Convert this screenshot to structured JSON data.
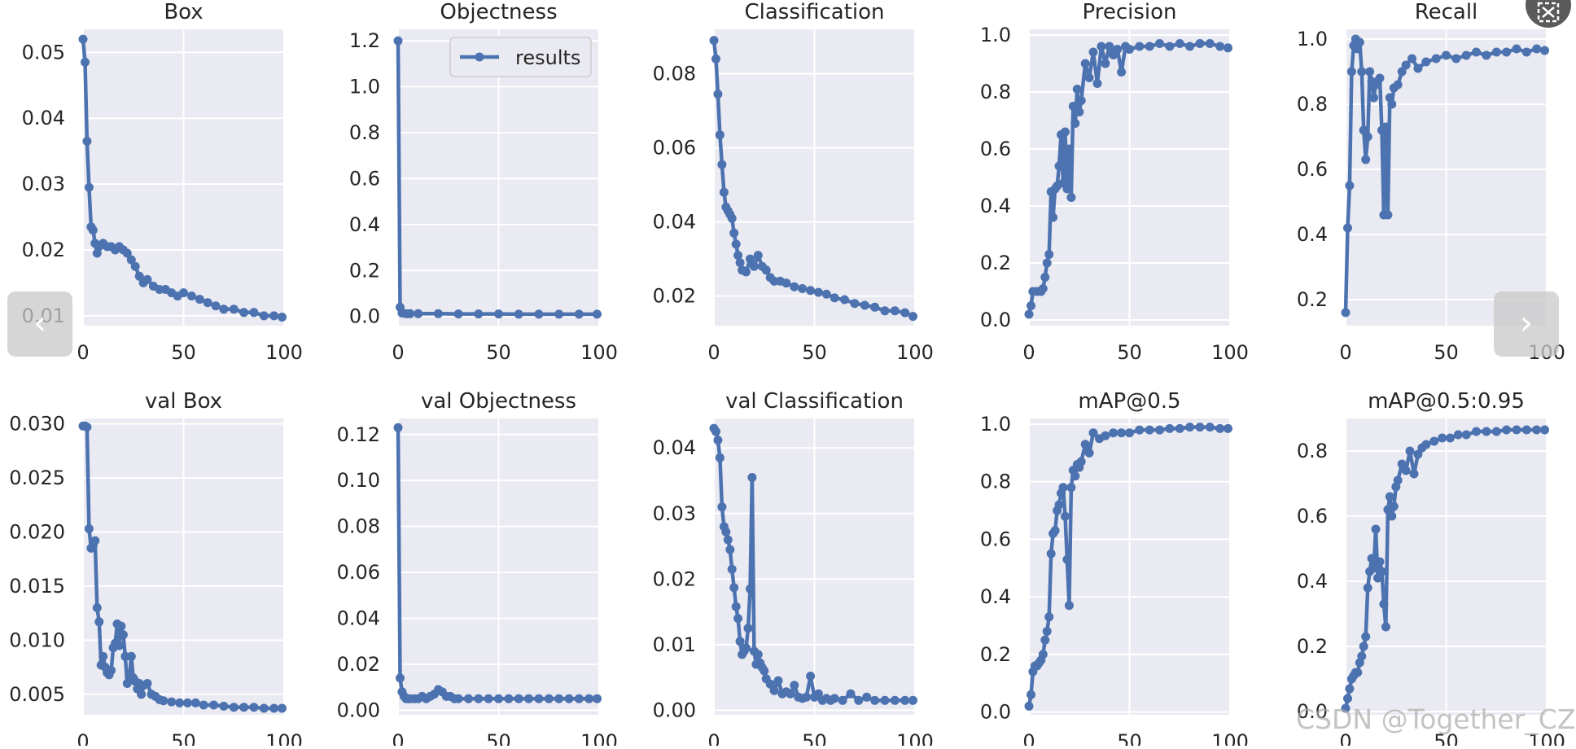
{
  "colors": {
    "line": "#4c72b0",
    "panel_bg": "#eaeaf2",
    "grid": "#ffffff",
    "text": "#262626"
  },
  "legend_label": "results",
  "watermark": "CSDN @Together_CZ",
  "nav": {
    "prev_icon": "chevron-left-icon",
    "next_icon": "chevron-right-icon",
    "close_icon": "close-icon"
  },
  "chart_data": [
    {
      "id": "box",
      "type": "line",
      "title": "Box",
      "xlim": [
        0,
        100
      ],
      "ylim": [
        0.0085,
        0.0535
      ],
      "xticks": [
        0,
        50,
        100
      ],
      "xtick_labels": [
        "0",
        "50",
        "100"
      ],
      "yticks": [
        0.01,
        0.02,
        0.03,
        0.04,
        0.05
      ],
      "ytick_labels": [
        "0.01",
        "0.02",
        "0.03",
        "0.04",
        "0.05"
      ],
      "x": [
        0,
        1,
        2,
        3,
        4,
        5,
        6,
        7,
        8,
        10,
        12,
        14,
        16,
        18,
        20,
        22,
        24,
        26,
        28,
        30,
        32,
        35,
        38,
        41,
        44,
        47,
        50,
        54,
        58,
        62,
        66,
        70,
        75,
        80,
        85,
        90,
        95,
        99
      ],
      "values": [
        0.052,
        0.0485,
        0.0365,
        0.0295,
        0.0235,
        0.023,
        0.021,
        0.0195,
        0.0205,
        0.021,
        0.0205,
        0.0205,
        0.02,
        0.0205,
        0.02,
        0.0195,
        0.0185,
        0.0175,
        0.016,
        0.015,
        0.0155,
        0.0145,
        0.014,
        0.014,
        0.0135,
        0.013,
        0.0135,
        0.013,
        0.0125,
        0.012,
        0.0115,
        0.011,
        0.011,
        0.0105,
        0.0105,
        0.01,
        0.01,
        0.0098
      ]
    },
    {
      "id": "objectness",
      "type": "line",
      "title": "Objectness",
      "xlim": [
        0,
        100
      ],
      "ylim": [
        -0.04,
        1.25
      ],
      "legend": true,
      "xticks": [
        0,
        50,
        100
      ],
      "xtick_labels": [
        "0",
        "50",
        "100"
      ],
      "yticks": [
        0,
        0.2,
        0.4,
        0.6,
        0.8,
        1.0,
        1.2
      ],
      "ytick_labels": [
        "0.0",
        "0.2",
        "0.4",
        "0.6",
        "0.8",
        "1.0",
        "1.2"
      ],
      "x": [
        0,
        1,
        2,
        4,
        6,
        10,
        20,
        30,
        40,
        50,
        60,
        70,
        80,
        90,
        99
      ],
      "values": [
        1.2,
        0.04,
        0.015,
        0.012,
        0.012,
        0.012,
        0.012,
        0.011,
        0.011,
        0.011,
        0.01,
        0.01,
        0.01,
        0.01,
        0.01
      ]
    },
    {
      "id": "classification",
      "type": "line",
      "title": "Classification",
      "xlim": [
        0,
        100
      ],
      "ylim": [
        0.012,
        0.092
      ],
      "xticks": [
        0,
        50,
        100
      ],
      "xtick_labels": [
        "0",
        "50",
        "100"
      ],
      "yticks": [
        0.02,
        0.04,
        0.06,
        0.08
      ],
      "ytick_labels": [
        "0.02",
        "0.04",
        "0.06",
        "0.08"
      ],
      "x": [
        0,
        1,
        2,
        3,
        4,
        5,
        6,
        7,
        8,
        9,
        10,
        11,
        12,
        13,
        14,
        16,
        18,
        20,
        22,
        24,
        26,
        28,
        30,
        33,
        36,
        40,
        44,
        48,
        52,
        56,
        60,
        65,
        70,
        75,
        80,
        85,
        90,
        95,
        99
      ],
      "values": [
        0.089,
        0.084,
        0.0745,
        0.0635,
        0.0555,
        0.048,
        0.044,
        0.043,
        0.042,
        0.041,
        0.037,
        0.034,
        0.031,
        0.029,
        0.027,
        0.0265,
        0.03,
        0.028,
        0.031,
        0.028,
        0.027,
        0.025,
        0.024,
        0.024,
        0.0235,
        0.0225,
        0.022,
        0.0215,
        0.021,
        0.0205,
        0.0195,
        0.019,
        0.018,
        0.0175,
        0.017,
        0.016,
        0.016,
        0.0155,
        0.0145
      ]
    },
    {
      "id": "precision",
      "type": "line",
      "title": "Precision",
      "xlim": [
        0,
        100
      ],
      "ylim": [
        -0.02,
        1.02
      ],
      "xticks": [
        0,
        50,
        100
      ],
      "xtick_labels": [
        "0",
        "50",
        "100"
      ],
      "yticks": [
        0,
        0.2,
        0.4,
        0.6,
        0.8,
        1.0
      ],
      "ytick_labels": [
        "0.0",
        "0.2",
        "0.4",
        "0.6",
        "0.8",
        "1.0"
      ],
      "x": [
        0,
        1,
        2,
        4,
        6,
        7,
        8,
        9,
        10,
        11,
        12,
        13,
        14,
        15,
        16,
        17,
        18,
        19,
        20,
        21,
        22,
        23,
        24,
        25,
        26,
        28,
        30,
        32,
        34,
        36,
        38,
        40,
        42,
        44,
        46,
        48,
        50,
        55,
        60,
        65,
        70,
        75,
        80,
        85,
        90,
        95,
        99
      ],
      "values": [
        0.02,
        0.05,
        0.1,
        0.1,
        0.1,
        0.11,
        0.15,
        0.2,
        0.23,
        0.45,
        0.36,
        0.46,
        0.47,
        0.54,
        0.65,
        0.48,
        0.66,
        0.46,
        0.6,
        0.43,
        0.75,
        0.69,
        0.81,
        0.73,
        0.77,
        0.9,
        0.85,
        0.94,
        0.83,
        0.96,
        0.9,
        0.96,
        0.93,
        0.95,
        0.87,
        0.96,
        0.95,
        0.96,
        0.96,
        0.97,
        0.96,
        0.97,
        0.96,
        0.97,
        0.97,
        0.96,
        0.955
      ]
    },
    {
      "id": "recall",
      "type": "line",
      "title": "Recall",
      "xlim": [
        0,
        100
      ],
      "ylim": [
        0.12,
        1.03
      ],
      "xticks": [
        0,
        50,
        100
      ],
      "xtick_labels": [
        "0",
        "50",
        "100"
      ],
      "yticks": [
        0.2,
        0.4,
        0.6,
        0.8,
        1.0
      ],
      "ytick_labels": [
        "0.2",
        "0.4",
        "0.6",
        "0.8",
        "1.0"
      ],
      "x": [
        0,
        1,
        2,
        3,
        4,
        5,
        6,
        7,
        8,
        9,
        10,
        11,
        12,
        13,
        14,
        15,
        16,
        17,
        18,
        19,
        20,
        21,
        22,
        23,
        24,
        26,
        28,
        30,
        33,
        36,
        40,
        45,
        50,
        55,
        60,
        65,
        70,
        75,
        80,
        85,
        90,
        95,
        99
      ],
      "values": [
        0.16,
        0.42,
        0.55,
        0.9,
        0.98,
        1.0,
        0.97,
        0.99,
        0.9,
        0.72,
        0.63,
        0.7,
        0.9,
        0.87,
        0.82,
        0.86,
        0.87,
        0.88,
        0.72,
        0.46,
        0.73,
        0.46,
        0.82,
        0.8,
        0.85,
        0.86,
        0.9,
        0.92,
        0.94,
        0.91,
        0.93,
        0.94,
        0.95,
        0.94,
        0.95,
        0.96,
        0.95,
        0.96,
        0.96,
        0.97,
        0.96,
        0.97,
        0.965
      ]
    },
    {
      "id": "val-box",
      "type": "line",
      "title": "val Box",
      "xlim": [
        0,
        100
      ],
      "ylim": [
        0.0031,
        0.0305
      ],
      "xticks": [
        0,
        50,
        100
      ],
      "xtick_labels": [
        "0",
        "50",
        "100"
      ],
      "yticks": [
        0.005,
        0.01,
        0.015,
        0.02,
        0.025,
        0.03
      ],
      "ytick_labels": [
        "0.005",
        "0.010",
        "0.015",
        "0.020",
        "0.025",
        "0.030"
      ],
      "x": [
        0,
        1,
        2,
        3,
        4,
        5,
        6,
        7,
        8,
        9,
        10,
        11,
        12,
        13,
        14,
        15,
        16,
        17,
        18,
        19,
        20,
        21,
        22,
        23,
        24,
        25,
        26,
        27,
        28,
        29,
        30,
        32,
        34,
        36,
        38,
        40,
        44,
        48,
        52,
        56,
        60,
        65,
        70,
        75,
        80,
        85,
        90,
        95,
        99
      ],
      "values": [
        0.0298,
        0.0298,
        0.0297,
        0.0203,
        0.0185,
        0.0188,
        0.0192,
        0.013,
        0.0117,
        0.0077,
        0.0085,
        0.0075,
        0.007,
        0.0068,
        0.0072,
        0.0093,
        0.0097,
        0.0115,
        0.0095,
        0.0113,
        0.0105,
        0.0085,
        0.006,
        0.0065,
        0.0085,
        0.0065,
        0.0062,
        0.0055,
        0.006,
        0.005,
        0.0058,
        0.006,
        0.005,
        0.0048,
        0.0045,
        0.0044,
        0.0043,
        0.0042,
        0.0042,
        0.0042,
        0.004,
        0.004,
        0.0039,
        0.0038,
        0.0038,
        0.0038,
        0.0037,
        0.0037,
        0.0037
      ]
    },
    {
      "id": "val-objectness",
      "type": "line",
      "title": "val Objectness",
      "xlim": [
        0,
        100
      ],
      "ylim": [
        -0.002,
        0.127
      ],
      "xticks": [
        0,
        50,
        100
      ],
      "xtick_labels": [
        "0",
        "50",
        "100"
      ],
      "yticks": [
        0,
        0.02,
        0.04,
        0.06,
        0.08,
        0.1,
        0.12
      ],
      "ytick_labels": [
        "0.00",
        "0.02",
        "0.04",
        "0.06",
        "0.08",
        "0.10",
        "0.12"
      ],
      "x": [
        0,
        1,
        2,
        3,
        4,
        5,
        6,
        8,
        10,
        12,
        14,
        16,
        18,
        20,
        22,
        24,
        26,
        28,
        30,
        35,
        40,
        45,
        50,
        55,
        60,
        65,
        70,
        75,
        80,
        85,
        90,
        95,
        99
      ],
      "values": [
        0.123,
        0.014,
        0.008,
        0.006,
        0.005,
        0.005,
        0.005,
        0.005,
        0.005,
        0.006,
        0.005,
        0.006,
        0.007,
        0.009,
        0.008,
        0.006,
        0.006,
        0.005,
        0.005,
        0.005,
        0.005,
        0.005,
        0.005,
        0.005,
        0.005,
        0.005,
        0.005,
        0.005,
        0.005,
        0.005,
        0.005,
        0.005,
        0.005
      ]
    },
    {
      "id": "val-classification",
      "type": "line",
      "title": "val Classification",
      "xlim": [
        0,
        100
      ],
      "ylim": [
        -0.0007,
        0.0445
      ],
      "xticks": [
        0,
        50,
        100
      ],
      "xtick_labels": [
        "0",
        "50",
        "100"
      ],
      "yticks": [
        0,
        0.01,
        0.02,
        0.03,
        0.04
      ],
      "ytick_labels": [
        "0.00",
        "0.01",
        "0.02",
        "0.03",
        "0.04"
      ],
      "x": [
        0,
        1,
        2,
        3,
        4,
        5,
        6,
        7,
        8,
        9,
        10,
        11,
        12,
        13,
        14,
        15,
        16,
        17,
        18,
        19,
        20,
        21,
        22,
        23,
        24,
        25,
        26,
        28,
        30,
        32,
        34,
        36,
        38,
        40,
        42,
        44,
        46,
        48,
        50,
        52,
        54,
        56,
        58,
        60,
        64,
        68,
        72,
        76,
        80,
        85,
        90,
        95,
        99
      ],
      "values": [
        0.043,
        0.0425,
        0.0412,
        0.0385,
        0.031,
        0.028,
        0.0272,
        0.026,
        0.0245,
        0.0215,
        0.0187,
        0.0158,
        0.014,
        0.0105,
        0.0085,
        0.009,
        0.0095,
        0.0125,
        0.0185,
        0.0355,
        0.009,
        0.007,
        0.0085,
        0.0072,
        0.0065,
        0.006,
        0.0048,
        0.004,
        0.003,
        0.0045,
        0.0025,
        0.0028,
        0.0025,
        0.0038,
        0.002,
        0.0018,
        0.002,
        0.0052,
        0.002,
        0.0025,
        0.0015,
        0.0018,
        0.0015,
        0.0018,
        0.0015,
        0.0025,
        0.0015,
        0.002,
        0.0015,
        0.0015,
        0.0015,
        0.0015,
        0.0015
      ]
    },
    {
      "id": "map50",
      "type": "line",
      "title": "mAP@0.5",
      "xlim": [
        0,
        100
      ],
      "ylim": [
        -0.01,
        1.02
      ],
      "xticks": [
        0,
        50,
        100
      ],
      "xtick_labels": [
        "0",
        "50",
        "100"
      ],
      "yticks": [
        0,
        0.2,
        0.4,
        0.6,
        0.8,
        1.0
      ],
      "ytick_labels": [
        "0.0",
        "0.2",
        "0.4",
        "0.6",
        "0.8",
        "1.0"
      ],
      "x": [
        0,
        1,
        2,
        3,
        4,
        5,
        6,
        7,
        8,
        9,
        10,
        11,
        12,
        13,
        14,
        15,
        16,
        17,
        18,
        19,
        20,
        21,
        22,
        23,
        24,
        25,
        26,
        28,
        30,
        32,
        35,
        38,
        42,
        46,
        50,
        55,
        60,
        65,
        70,
        75,
        80,
        85,
        90,
        95,
        99
      ],
      "values": [
        0.02,
        0.06,
        0.14,
        0.16,
        0.16,
        0.17,
        0.18,
        0.2,
        0.25,
        0.28,
        0.33,
        0.55,
        0.62,
        0.63,
        0.7,
        0.72,
        0.76,
        0.78,
        0.68,
        0.53,
        0.37,
        0.78,
        0.84,
        0.82,
        0.86,
        0.85,
        0.87,
        0.93,
        0.9,
        0.97,
        0.95,
        0.96,
        0.97,
        0.97,
        0.97,
        0.98,
        0.98,
        0.98,
        0.985,
        0.985,
        0.99,
        0.99,
        0.99,
        0.985,
        0.985
      ]
    },
    {
      "id": "map50-95",
      "type": "line",
      "title": "mAP@0.5:0.95",
      "xlim": [
        0,
        100
      ],
      "ylim": [
        -0.01,
        0.9
      ],
      "xticks": [
        0,
        50,
        100
      ],
      "xtick_labels": [
        "0",
        "50",
        "100"
      ],
      "yticks": [
        0,
        0.2,
        0.4,
        0.6,
        0.8
      ],
      "ytick_labels": [
        "0.0",
        "0.2",
        "0.4",
        "0.6",
        "0.8"
      ],
      "x": [
        0,
        1,
        2,
        3,
        4,
        5,
        6,
        7,
        8,
        9,
        10,
        11,
        12,
        13,
        14,
        15,
        16,
        17,
        18,
        19,
        20,
        21,
        22,
        23,
        24,
        25,
        26,
        28,
        30,
        32,
        34,
        36,
        38,
        40,
        44,
        48,
        52,
        56,
        60,
        65,
        70,
        75,
        80,
        85,
        90,
        95,
        99
      ],
      "values": [
        0.01,
        0.04,
        0.07,
        0.1,
        0.11,
        0.12,
        0.12,
        0.15,
        0.17,
        0.2,
        0.23,
        0.38,
        0.43,
        0.47,
        0.44,
        0.56,
        0.41,
        0.46,
        0.43,
        0.33,
        0.26,
        0.62,
        0.66,
        0.6,
        0.63,
        0.69,
        0.71,
        0.76,
        0.74,
        0.8,
        0.73,
        0.79,
        0.81,
        0.82,
        0.83,
        0.84,
        0.84,
        0.85,
        0.85,
        0.86,
        0.86,
        0.86,
        0.865,
        0.865,
        0.865,
        0.865,
        0.865
      ]
    }
  ]
}
